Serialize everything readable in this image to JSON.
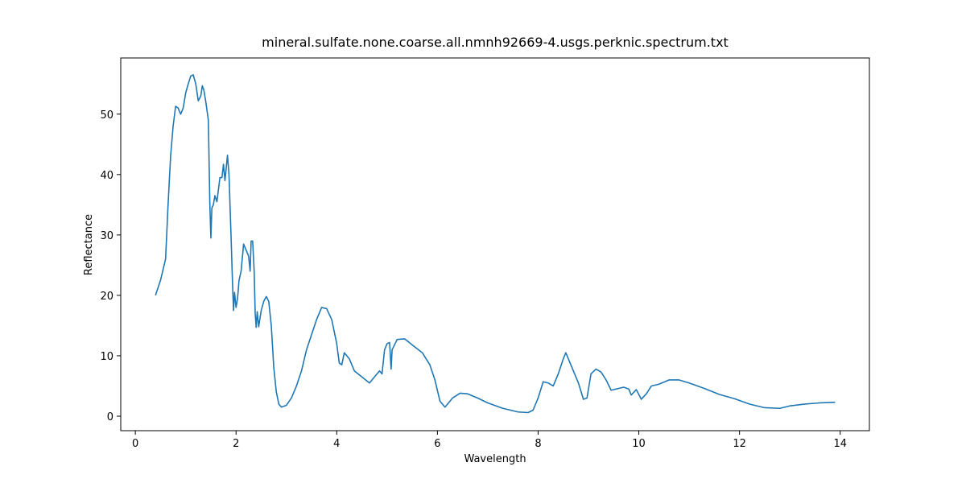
{
  "chart_data": {
    "type": "line",
    "title": "mineral.sulfate.none.coarse.all.nmnh92669-4.usgs.perknic.spectrum.txt",
    "x_label": "Wavelength",
    "y_label": "Reflectance",
    "x": [
      0.4,
      0.5,
      0.6,
      0.65,
      0.7,
      0.75,
      0.8,
      0.85,
      0.9,
      0.95,
      1.0,
      1.05,
      1.1,
      1.15,
      1.2,
      1.25,
      1.3,
      1.33,
      1.36,
      1.4,
      1.45,
      1.48,
      1.5,
      1.52,
      1.55,
      1.58,
      1.62,
      1.68,
      1.72,
      1.75,
      1.78,
      1.83,
      1.86,
      1.9,
      1.93,
      1.95,
      1.97,
      2.0,
      2.03,
      2.06,
      2.1,
      2.15,
      2.2,
      2.25,
      2.28,
      2.3,
      2.33,
      2.36,
      2.38,
      2.4,
      2.42,
      2.45,
      2.5,
      2.55,
      2.6,
      2.65,
      2.7,
      2.75,
      2.8,
      2.85,
      2.9,
      3.0,
      3.1,
      3.2,
      3.3,
      3.4,
      3.5,
      3.6,
      3.7,
      3.8,
      3.9,
      4.0,
      4.05,
      4.1,
      4.15,
      4.25,
      4.35,
      4.5,
      4.65,
      4.75,
      4.85,
      4.9,
      4.95,
      5.0,
      5.05,
      5.08,
      5.1,
      5.2,
      5.35,
      5.5,
      5.7,
      5.85,
      5.95,
      6.05,
      6.15,
      6.3,
      6.45,
      6.6,
      6.8,
      7.0,
      7.3,
      7.6,
      7.8,
      7.9,
      8.0,
      8.1,
      8.2,
      8.3,
      8.4,
      8.5,
      8.55,
      8.65,
      8.8,
      8.9,
      8.97,
      9.05,
      9.15,
      9.25,
      9.35,
      9.45,
      9.6,
      9.7,
      9.8,
      9.85,
      9.95,
      10.05,
      10.15,
      10.25,
      10.4,
      10.6,
      10.8,
      11.0,
      11.3,
      11.6,
      11.9,
      12.2,
      12.5,
      12.8,
      13.0,
      13.3,
      13.6,
      13.9
    ],
    "series": [
      {
        "name": "Reflectance",
        "color": "#1f77b4",
        "values": [
          20,
          22.5,
          26,
          35,
          43,
          48,
          51.3,
          51,
          50,
          51,
          53.5,
          55,
          56.3,
          56.5,
          55,
          52.2,
          53,
          54.7,
          54,
          52,
          49,
          35,
          29.5,
          34.5,
          35,
          36.5,
          35.5,
          39.5,
          39.5,
          41.7,
          39,
          43.2,
          40,
          30,
          22,
          17.5,
          20.5,
          18,
          19.5,
          22.5,
          24,
          28.5,
          27.5,
          26.5,
          24,
          29,
          29,
          24,
          17,
          14.7,
          17.3,
          14.8,
          17.5,
          19,
          19.8,
          19,
          15,
          8,
          4,
          2,
          1.5,
          1.8,
          3,
          5,
          7.5,
          11,
          13.5,
          16,
          18,
          17.8,
          16,
          12,
          8.8,
          8.5,
          10.5,
          9.5,
          7.5,
          6.5,
          5.5,
          6.5,
          7.5,
          7,
          11,
          12,
          12.2,
          7.8,
          11,
          12.7,
          12.8,
          11.8,
          10.5,
          8.5,
          6,
          2.5,
          1.5,
          3,
          3.8,
          3.7,
          3,
          2.2,
          1.3,
          0.7,
          0.6,
          1,
          3,
          5.7,
          5.5,
          5,
          7,
          9.5,
          10.5,
          8.5,
          5.5,
          2.8,
          3,
          7,
          7.8,
          7.3,
          6,
          4.3,
          4.6,
          4.8,
          4.5,
          3.5,
          4.4,
          2.8,
          3.7,
          5,
          5.3,
          6,
          6,
          5.5,
          4.6,
          3.6,
          2.9,
          2,
          1.4,
          1.3,
          1.7,
          2,
          2.2,
          2.3
        ]
      }
    ],
    "xlim": [
      -0.29,
      14.58
    ],
    "ylim": [
      -2.4,
      59.3
    ],
    "xticks": [
      0,
      2,
      4,
      6,
      8,
      10,
      12,
      14
    ],
    "yticks": [
      0,
      10,
      20,
      30,
      40,
      50
    ]
  }
}
